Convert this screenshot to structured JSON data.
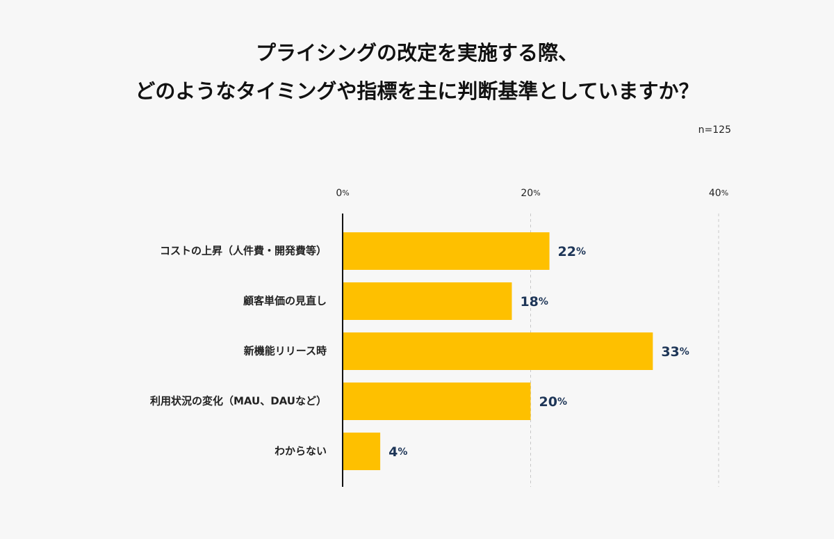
{
  "chart_data": {
    "type": "hbar",
    "title": [
      "プライシングの改定を実施する際、",
      "どのようなタイミングや指標を主に判断基準としていますか？"
    ],
    "subtitle": "n=125",
    "categories": [
      "コストの上昇（人件費・開発費等）",
      "顧客単価の見直し",
      "新機能リリース時",
      "利用状況の変化（MAU、DAUなど）",
      "わからない"
    ],
    "values": [
      22,
      18,
      33,
      20,
      4
    ],
    "value_labels": [
      "22%",
      "18%",
      "33%",
      "20%",
      "4%"
    ],
    "color": "#fec000",
    "xlim": [
      0,
      40
    ],
    "xticks": [
      {
        "value": 0,
        "label": "0%"
      },
      {
        "value": 20,
        "label": "20%"
      },
      {
        "value": 40,
        "label": "40%"
      }
    ],
    "grid": true
  }
}
